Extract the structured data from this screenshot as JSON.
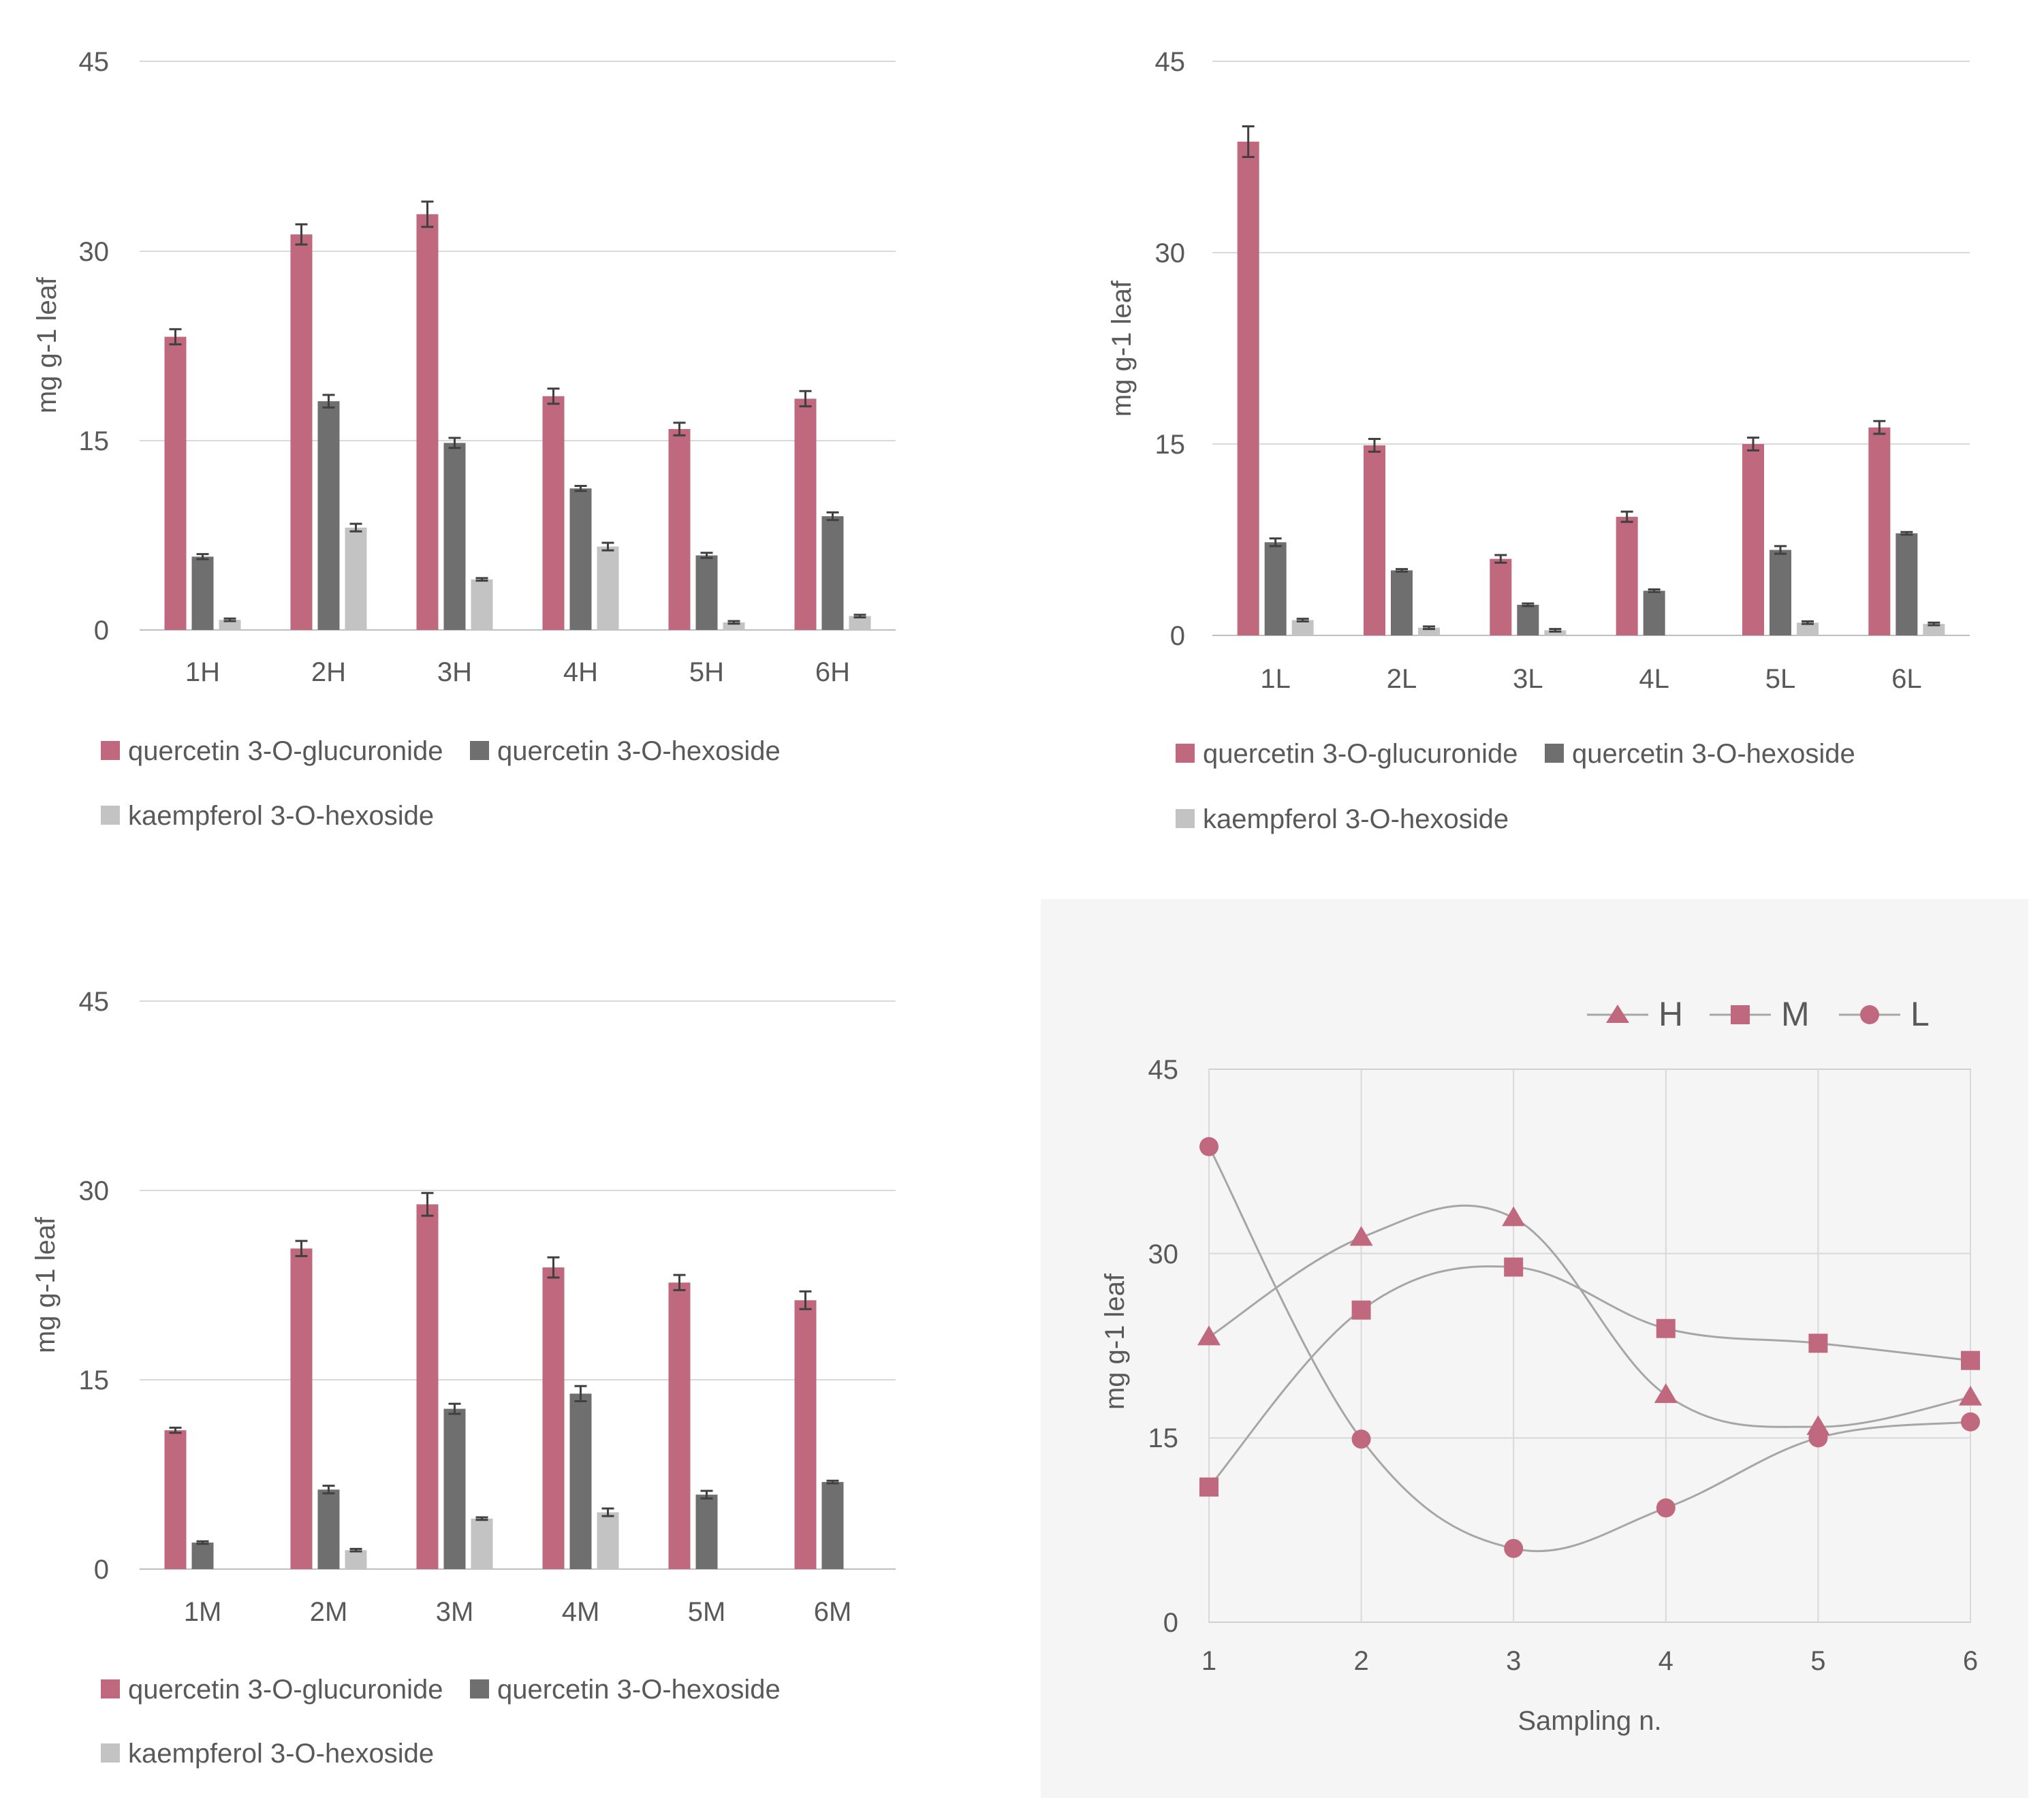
{
  "colors": {
    "glucuronide": "#c0687d",
    "hexoside": "#6f6f6f",
    "kaempferol": "#c3c3c3",
    "marker": "#c0687d",
    "panel_bg": "#f5f5f5"
  },
  "legend_labels": {
    "glucuronide": "quercetin 3-O-glucuronide",
    "hexoside": "quercetin 3-O-hexoside",
    "kaempferol": "kaempferol 3-O-hexoside"
  },
  "chart_data": [
    {
      "type": "bar",
      "id": "H",
      "ylabel": "mg g-1 leaf",
      "ylim": [
        0,
        45
      ],
      "yticks": [
        "0",
        "15",
        "30",
        "45"
      ],
      "categories": [
        "1H",
        "2H",
        "3H",
        "4H",
        "5H",
        "6H"
      ],
      "series": [
        {
          "name": "quercetin 3-O-glucuronide",
          "key": "glucuronide",
          "values": [
            23.2,
            31.3,
            32.9,
            18.5,
            15.9,
            18.3
          ],
          "errors": [
            0.6,
            0.8,
            1.0,
            0.6,
            0.5,
            0.6
          ]
        },
        {
          "name": "quercetin 3-O-hexoside",
          "key": "hexoside",
          "values": [
            5.8,
            18.1,
            14.8,
            11.2,
            5.9,
            9.0
          ],
          "errors": [
            0.2,
            0.5,
            0.4,
            0.2,
            0.2,
            0.3
          ]
        },
        {
          "name": "kaempferol 3-O-hexoside",
          "key": "kaempferol",
          "values": [
            0.8,
            8.1,
            4.0,
            6.6,
            0.6,
            1.1
          ],
          "errors": [
            0.1,
            0.3,
            0.1,
            0.3,
            0.1,
            0.1
          ]
        }
      ],
      "legend": "bottom"
    },
    {
      "type": "bar",
      "id": "L",
      "ylabel": "mg g-1 leaf",
      "ylim": [
        0,
        45
      ],
      "yticks": [
        "0",
        "15",
        "30",
        "45"
      ],
      "categories": [
        "1L",
        "2L",
        "3L",
        "4L",
        "5L",
        "6L"
      ],
      "series": [
        {
          "name": "quercetin 3-O-glucuronide",
          "key": "glucuronide",
          "values": [
            38.7,
            14.9,
            6.0,
            9.3,
            15.0,
            16.3
          ],
          "errors": [
            1.2,
            0.5,
            0.3,
            0.4,
            0.5,
            0.5
          ]
        },
        {
          "name": "quercetin 3-O-hexoside",
          "key": "hexoside",
          "values": [
            7.3,
            5.1,
            2.4,
            3.5,
            6.7,
            8.0
          ],
          "errors": [
            0.3,
            0.1,
            0.1,
            0.1,
            0.3,
            0.1
          ]
        },
        {
          "name": "kaempferol 3-O-hexoside",
          "key": "kaempferol",
          "values": [
            1.2,
            0.6,
            0.4,
            0.0,
            1.0,
            0.9
          ],
          "errors": [
            0.1,
            0.1,
            0.1,
            0.0,
            0.1,
            0.1
          ]
        }
      ],
      "legend": "bottom"
    },
    {
      "type": "bar",
      "id": "M",
      "ylabel": "mg g-1 leaf",
      "ylim": [
        0,
        45
      ],
      "yticks": [
        "0",
        "15",
        "30",
        "45"
      ],
      "categories": [
        "1M",
        "2M",
        "3M",
        "4M",
        "5M",
        "6M"
      ],
      "series": [
        {
          "name": "quercetin 3-O-glucuronide",
          "key": "glucuronide",
          "values": [
            11.0,
            25.4,
            28.9,
            23.9,
            22.7,
            21.3
          ],
          "errors": [
            0.2,
            0.6,
            0.9,
            0.8,
            0.6,
            0.7
          ]
        },
        {
          "name": "quercetin 3-O-hexoside",
          "key": "hexoside",
          "values": [
            2.1,
            6.3,
            12.7,
            13.9,
            5.9,
            6.9
          ],
          "errors": [
            0.1,
            0.3,
            0.4,
            0.6,
            0.3,
            0.1
          ]
        },
        {
          "name": "kaempferol 3-O-hexoside",
          "key": "kaempferol",
          "values": [
            0.0,
            1.5,
            4.0,
            4.5,
            0.0,
            0.0
          ],
          "errors": [
            0.0,
            0.1,
            0.1,
            0.3,
            0.0,
            0.0
          ]
        }
      ],
      "legend": "bottom"
    },
    {
      "type": "line",
      "id": "summary",
      "xlabel": "Sampling n.",
      "ylabel": "mg g-1 leaf",
      "x": [
        1,
        2,
        3,
        4,
        5,
        6
      ],
      "xticks": [
        "1",
        "2",
        "3",
        "4",
        "5",
        "6"
      ],
      "ylim": [
        0,
        45
      ],
      "yticks": [
        "0",
        "15",
        "30",
        "45"
      ],
      "grid": true,
      "series": [
        {
          "name": "H",
          "marker": "triangle",
          "values": [
            23.2,
            31.3,
            32.9,
            18.5,
            15.9,
            18.3
          ]
        },
        {
          "name": "M",
          "marker": "square",
          "values": [
            11.0,
            25.4,
            28.9,
            23.9,
            22.7,
            21.3
          ]
        },
        {
          "name": "L",
          "marker": "circle",
          "values": [
            38.7,
            14.9,
            6.0,
            9.3,
            15.0,
            16.3
          ]
        }
      ],
      "legend": "top-right"
    }
  ]
}
